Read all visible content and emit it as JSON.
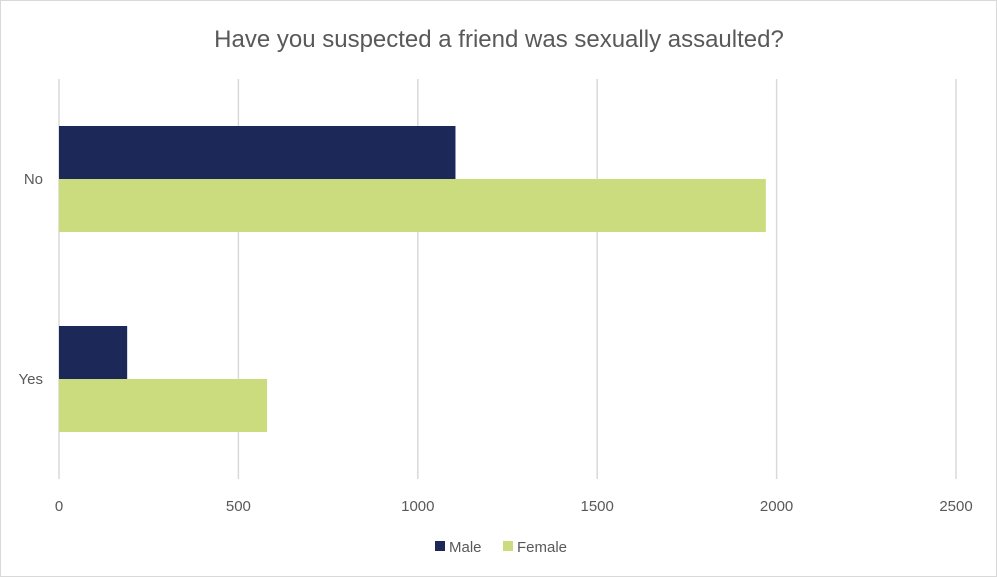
{
  "chart_data": {
    "type": "bar",
    "orientation": "horizontal",
    "title": "Have you suspected a friend was sexually assaulted?",
    "categories": [
      "No",
      "Yes"
    ],
    "series": [
      {
        "name": "Male",
        "values": [
          1105,
          190
        ],
        "color": "#1b2858"
      },
      {
        "name": "Female",
        "values": [
          1970,
          580
        ],
        "color": "#cbdc7f"
      }
    ],
    "x_ticks": [
      0,
      500,
      1000,
      1500,
      2000,
      2500
    ],
    "xlim": [
      0,
      2500
    ],
    "xlabel": "",
    "ylabel": "",
    "grid": true,
    "legend_position": "bottom"
  }
}
